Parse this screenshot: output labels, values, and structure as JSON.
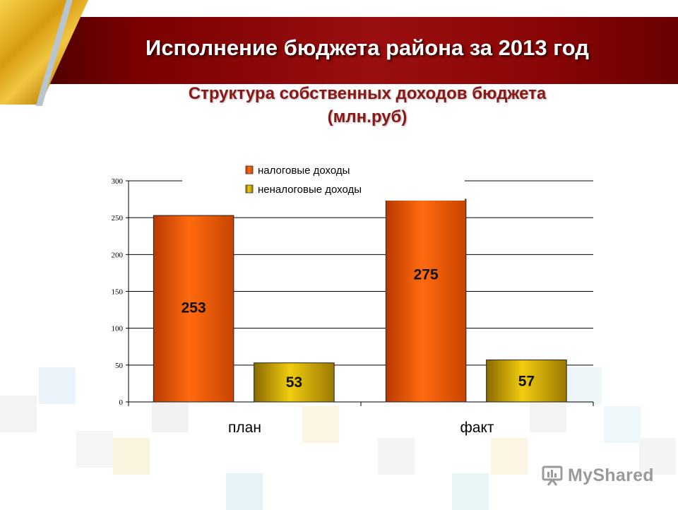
{
  "header": {
    "title": "Исполнение бюджета района за 2013 год",
    "subtitle_line1": "Структура собственных доходов бюджета",
    "subtitle_line2": "(млн.руб)"
  },
  "watermark": {
    "text": "MyShared",
    "icon": "presentation-board-icon"
  },
  "colors": {
    "banner": "#8a0606",
    "subtitle": "#8b1818",
    "series_tax": "#ff6a10",
    "series_nontax": "#e8c000"
  },
  "chart_data": {
    "type": "bar",
    "categories": [
      "план",
      "факт"
    ],
    "series": [
      {
        "name": "налоговые доходы",
        "values": [
          253,
          275
        ],
        "color": "#ff6a10"
      },
      {
        "name": "неналоговые доходы",
        "values": [
          53,
          57
        ],
        "color": "#e8c000"
      }
    ],
    "data_labels": [
      [
        "253",
        "275"
      ],
      [
        "53",
        "57"
      ]
    ],
    "yticks": [
      "0",
      "50",
      "100",
      "150",
      "200",
      "250",
      "300"
    ],
    "ylim": [
      0,
      300
    ],
    "grid": true,
    "legend_position": "top"
  }
}
